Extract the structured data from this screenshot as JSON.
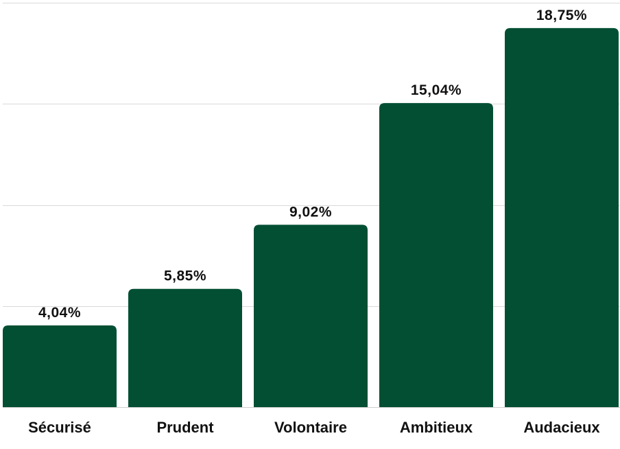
{
  "chart_data": {
    "type": "bar",
    "categories": [
      "Sécurisé",
      "Prudent",
      "Volontaire",
      "Ambitieux",
      "Audacieux"
    ],
    "values": [
      4.04,
      5.85,
      9.02,
      15.04,
      18.75
    ],
    "value_labels": [
      "4,04%",
      "5,85%",
      "9,02%",
      "15,04%",
      "18,75%"
    ],
    "title": "",
    "xlabel": "",
    "ylabel": "",
    "ylim": [
      0,
      20
    ],
    "grid": true,
    "legend": "none",
    "colors": {
      "bar": "#034f34",
      "grid": "#d9d9d9",
      "text": "#111111"
    }
  }
}
